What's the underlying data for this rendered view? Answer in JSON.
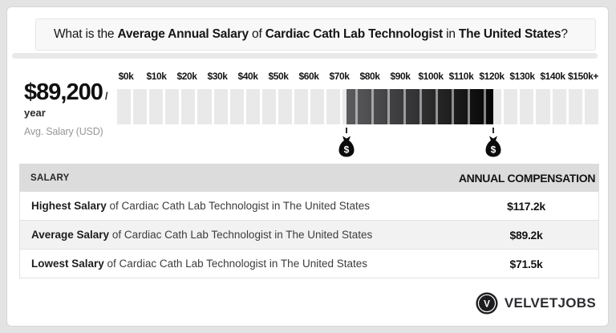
{
  "header": {
    "q1": "What is the ",
    "b1": "Average Annual Salary",
    "q2": " of ",
    "b2": "Cardiac Cath Lab Technologist",
    "q3": " in ",
    "b3": "The United States",
    "q4": "?"
  },
  "avg_salary": {
    "amount": "$89,200",
    "per": "/ year",
    "caption": "Avg. Salary (USD)"
  },
  "scale": {
    "ticks": [
      "$0k",
      "$10k",
      "$20k",
      "$30k",
      "$40k",
      "$50k",
      "$60k",
      "$70k",
      "$80k",
      "$90k",
      "$100k",
      "$110k",
      "$120k",
      "$130k",
      "$140k",
      "$150k+"
    ],
    "segment_count": 30,
    "axis_max_k": 150,
    "low_k": 71.5,
    "high_k": 117.2,
    "cell_color": "#e9e9e9",
    "range_gradient_start": "#5c5c5f",
    "range_gradient_end": "#050505",
    "money_bag_symbol": "$"
  },
  "table": {
    "col_salary": "SALARY",
    "col_compensation": "ANNUAL COMPENSATION",
    "rows": [
      {
        "label_bold": "Highest Salary",
        "label_rest": " of Cardiac Cath Lab Technologist in The United States",
        "value": "$117.2k"
      },
      {
        "label_bold": "Average Salary",
        "label_rest": " of Cardiac Cath Lab Technologist in The United States",
        "value": "$89.2k"
      },
      {
        "label_bold": "Lowest Salary",
        "label_rest": " of Cardiac Cath Lab Technologist in The United States",
        "value": "$71.5k"
      }
    ]
  },
  "footer": {
    "logo_letter": "V",
    "brand": "VELVETJOBS"
  },
  "chart_data": {
    "type": "bar",
    "title": "What is the Average Annual Salary of Cardiac Cath Lab Technologist in The United States?",
    "x_tick_labels": [
      "$0k",
      "$10k",
      "$20k",
      "$30k",
      "$40k",
      "$50k",
      "$60k",
      "$70k",
      "$80k",
      "$90k",
      "$100k",
      "$110k",
      "$120k",
      "$130k",
      "$140k",
      "$150k+"
    ],
    "xlim_usd_k": [
      0,
      150
    ],
    "segment_size_usd_k": 5,
    "highlight_range_usd_k": {
      "low": 71.5,
      "high": 117.2
    },
    "average_usd": 89200,
    "annotations": [
      "money-bag marker at $71.5k",
      "money-bag marker at $117.2k"
    ],
    "legend": "none",
    "series": [
      {
        "name": "Highest Salary",
        "value_usd_k": 117.2
      },
      {
        "name": "Average Salary",
        "value_usd_k": 89.2
      },
      {
        "name": "Lowest Salary",
        "value_usd_k": 71.5
      }
    ]
  }
}
